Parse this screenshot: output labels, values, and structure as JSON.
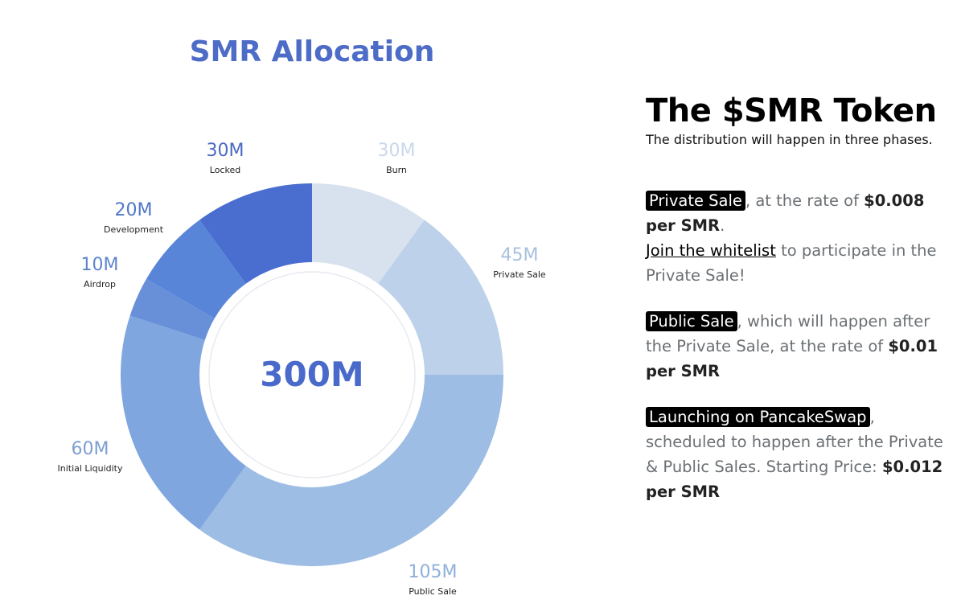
{
  "chart_data": {
    "type": "pie",
    "title": "SMR Allocation",
    "center_label": "300M",
    "total": 300,
    "unit": "M",
    "slices": [
      {
        "value": 30,
        "value_label": "30M",
        "label": "Burn",
        "color": "#d8e2ee",
        "label_color": "#c9d8ea"
      },
      {
        "value": 45,
        "value_label": "45M",
        "label": "Private Sale",
        "color": "#bdd1ea",
        "label_color": "#a9c0de"
      },
      {
        "value": 105,
        "value_label": "105M",
        "label": "Public Sale",
        "color": "#9dbde4",
        "label_color": "#8fb0d9"
      },
      {
        "value": 60,
        "value_label": "60M",
        "label": "Initial Liquidity",
        "color": "#7fa6de",
        "label_color": "#7d9fd1"
      },
      {
        "value": 10,
        "value_label": "10M",
        "label": "Airdrop",
        "color": "#6890d9",
        "label_color": "#5f85cf"
      },
      {
        "value": 20,
        "value_label": "20M",
        "label": "Development",
        "color": "#5985d9",
        "label_color": "#5078c9"
      },
      {
        "value": 30,
        "value_label": "30M",
        "label": "Locked",
        "color": "#4a6ed0",
        "label_color": "#4a6ac2"
      }
    ]
  },
  "token_info": {
    "heading": "The $SMR Token",
    "subheading": "The distribution will happen in three phases.",
    "phase1": {
      "badge": "Private Sale",
      "text1": ", at the rate of ",
      "price": "$0.008 per SMR",
      "text2": ".",
      "link": "Join the whitelist",
      "text3": " to participate in the Private Sale!"
    },
    "phase2": {
      "badge": "Public Sale",
      "text1": ", which will happen after the Private Sale, at the rate of ",
      "price": "$0.01 per SMR"
    },
    "phase3": {
      "badge": "Launching on PancakeSwap",
      "text1": ", scheduled to happen after the Private & Public Sales. Starting Price: ",
      "price": "$0.012 per SMR"
    }
  }
}
